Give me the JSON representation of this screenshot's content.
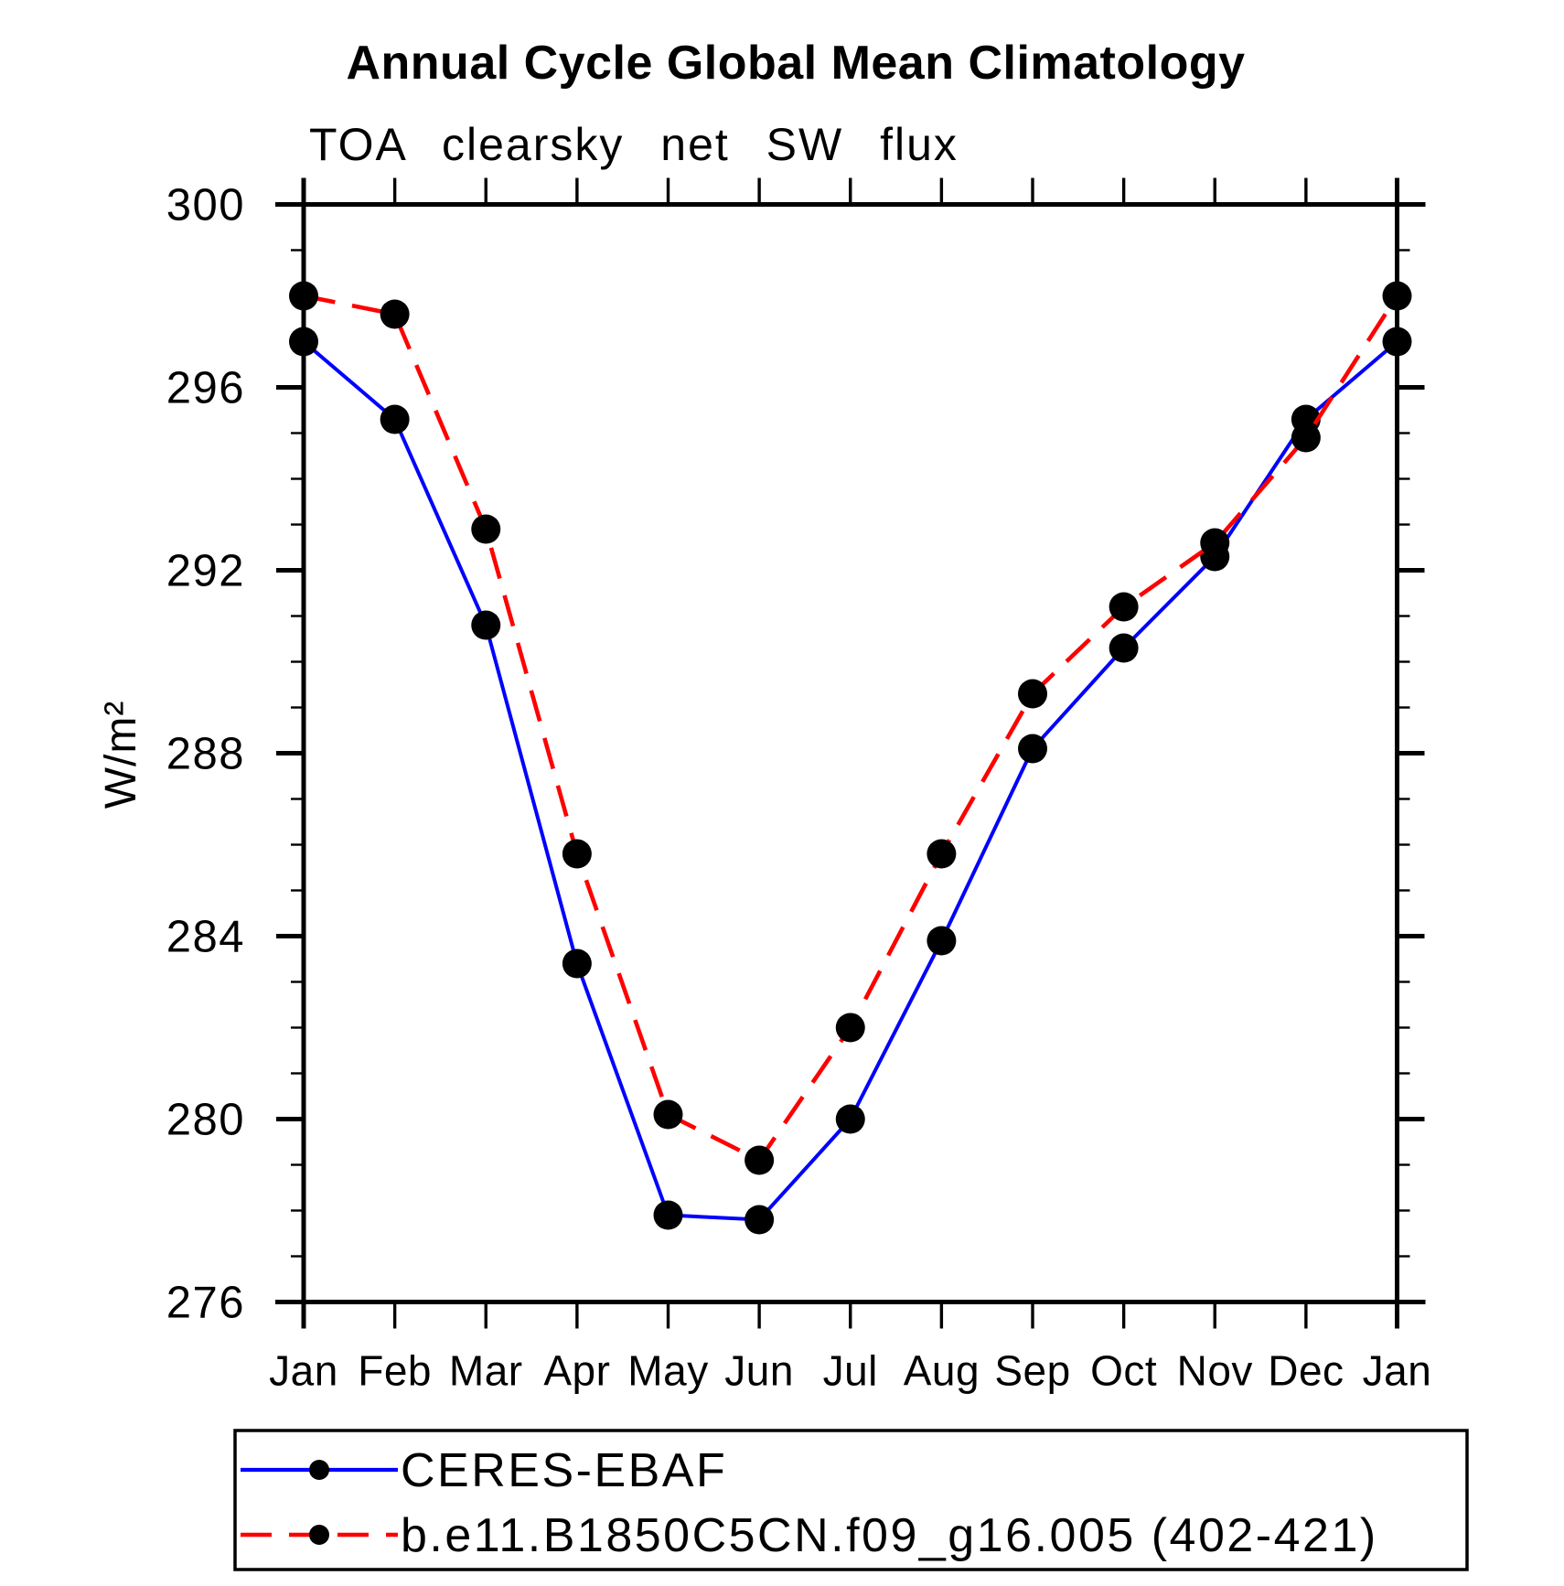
{
  "chart_data": {
    "type": "line",
    "title": "Annual Cycle Global Mean Climatology",
    "subtitle": "TOA clearsky net SW flux",
    "ylabel": "W/m²",
    "x_categories": [
      "Jan",
      "Feb",
      "Mar",
      "Apr",
      "May",
      "Jun",
      "Jul",
      "Aug",
      "Sep",
      "Oct",
      "Nov",
      "Dec",
      "Jan"
    ],
    "ylim": [
      276,
      300
    ],
    "yticks": [
      300,
      296,
      292,
      288,
      284,
      280,
      276
    ],
    "ytick_major_interval": 4,
    "ytick_minor_interval": 1,
    "grid": false,
    "legend_position": "bottom",
    "axis_color": "#000000",
    "background_color": "#ffffff",
    "series": [
      {
        "name": "CERES-EBAF",
        "color": "#0000ff",
        "line_style": "solid",
        "marker": "filled-circle",
        "marker_color": "#000000",
        "values": [
          297.0,
          295.3,
          290.8,
          283.4,
          277.9,
          277.8,
          280.0,
          283.9,
          288.1,
          290.3,
          292.3,
          295.3,
          297.0
        ]
      },
      {
        "name": "b.e11.B1850C5CN.f09_g16.005 (402-421)",
        "color": "#ff0000",
        "line_style": "dashed",
        "marker": "filled-circle",
        "marker_color": "#000000",
        "values": [
          298.0,
          297.6,
          292.9,
          285.8,
          280.1,
          279.1,
          282.0,
          285.8,
          289.3,
          291.2,
          292.6,
          294.9,
          298.0
        ]
      }
    ]
  }
}
